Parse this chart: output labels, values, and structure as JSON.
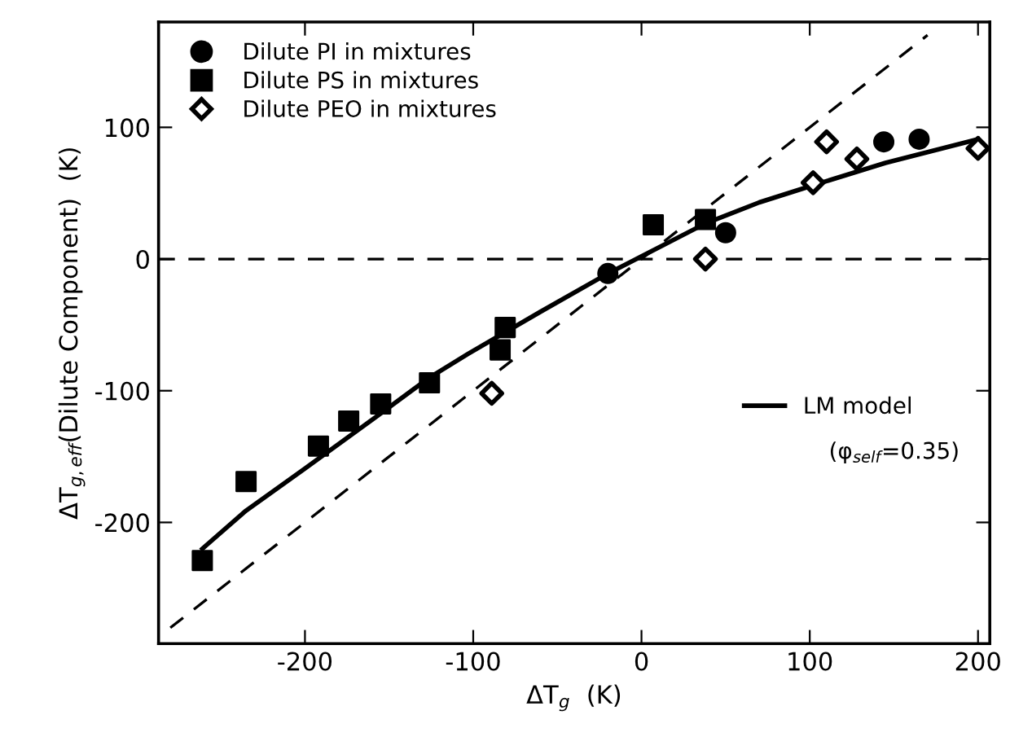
{
  "chart_data": {
    "type": "scatter",
    "xlabel": "ΔT$_{g}$  (K)",
    "ylabel": "ΔT$_{g,eff}$(Dilute Component)  (K)",
    "xlim": [
      -287,
      207
    ],
    "ylim": [
      -292,
      180
    ],
    "xticks": [
      -200,
      -100,
      0,
      100,
      200
    ],
    "yticks": [
      -200,
      -100,
      0,
      100
    ],
    "legend": "top left",
    "series": [
      {
        "name": "Dilute PI in mixtures",
        "marker": "circle",
        "color": "#000000",
        "x": [
          144,
          165,
          50,
          -20
        ],
        "values": [
          89,
          91,
          20,
          -11
        ]
      },
      {
        "name": "Dilute PS in mixtures",
        "marker": "square",
        "color": "#000000",
        "x": [
          7,
          38,
          -81,
          -84,
          -126,
          -155,
          -174,
          -192,
          -235,
          -261
        ],
        "values": [
          26,
          30,
          -52,
          -69,
          -94,
          -110,
          -123,
          -142,
          -169,
          -229
        ]
      },
      {
        "name": "Dilute PEO in mixtures",
        "marker": "diamond",
        "color": "#000000",
        "x": [
          38,
          102,
          110,
          128,
          200,
          -89
        ],
        "values": [
          0,
          58,
          89,
          76,
          84,
          -102
        ]
      },
      {
        "name": "LM model",
        "type": "line",
        "line_style": "solid",
        "color": "#000000",
        "x": [
          -261,
          -235,
          -200,
          -160,
          -126,
          -103,
          -60,
          -20,
          0,
          38,
          70,
          102,
          145,
          200
        ],
        "values": [
          -220,
          -191,
          -159,
          -122,
          -90,
          -72,
          -40,
          -11,
          2,
          27,
          43,
          56,
          73,
          91
        ]
      },
      {
        "type": "line",
        "line_style": "dashed",
        "color": "#000000",
        "x": [
          -280,
          170
        ],
        "values": [
          -280,
          170
        ]
      }
    ],
    "ref_lines": [
      {
        "axis": "y",
        "value": 0,
        "line_style": "dashed",
        "color": "#000000"
      }
    ],
    "annotations": [
      "(φ$_{self}$=0.35)"
    ]
  }
}
